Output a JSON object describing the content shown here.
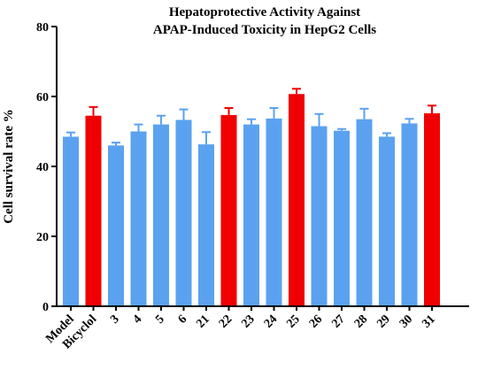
{
  "chart_data": {
    "type": "bar",
    "title_line1": "Hepatoprotective Activity Against",
    "title_line2": "APAP-Induced Toxicity in HepG2 Cells",
    "ylabel": "Cell survival rate %",
    "xlabel": "",
    "ylim": [
      0,
      80
    ],
    "yticks": [
      "0",
      "20",
      "40",
      "60",
      "80"
    ],
    "categories": [
      "Model",
      "Bicyclol",
      "3",
      "4",
      "5",
      "6",
      "21",
      "22",
      "23",
      "24",
      "25",
      "26",
      "27",
      "28",
      "29",
      "30",
      "31"
    ],
    "values": [
      48.5,
      54.5,
      46.0,
      50.0,
      52.0,
      53.3,
      46.3,
      54.7,
      52.0,
      53.7,
      60.7,
      51.5,
      50.2,
      53.5,
      48.5,
      52.3,
      55.2
    ],
    "errors": [
      1.2,
      2.5,
      0.8,
      2.0,
      2.5,
      3.0,
      3.5,
      2.0,
      1.5,
      3.0,
      1.5,
      3.5,
      0.5,
      3.0,
      1.0,
      1.3,
      2.2
    ],
    "highlighted": [
      "Bicyclol",
      "22",
      "25",
      "31"
    ],
    "colors": {
      "default": "#5AA2F0",
      "highlight": "#F00000",
      "axis": "#000000"
    },
    "grid": false,
    "legend": "none"
  }
}
